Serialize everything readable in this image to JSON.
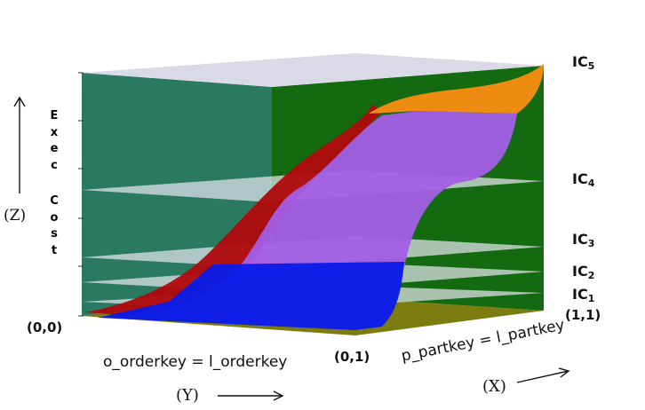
{
  "chart_data": {
    "type": "3d-surface",
    "title": "",
    "z_axis": {
      "title_letters": [
        "E",
        "x",
        "e",
        "c",
        "",
        "C",
        "o",
        "s",
        "t"
      ],
      "marker": "(Z)",
      "iso_cost_levels": [
        {
          "name": "IC",
          "sub": "1"
        },
        {
          "name": "IC",
          "sub": "2"
        },
        {
          "name": "IC",
          "sub": "3"
        },
        {
          "name": "IC",
          "sub": "4"
        },
        {
          "name": "IC",
          "sub": "5"
        }
      ]
    },
    "y_axis": {
      "label": "o_orderkey = l_orderkey",
      "marker": "(Y)",
      "origin": "(0,0)",
      "end": "(0,1)"
    },
    "x_axis": {
      "label": "p_partkey = l_partkey",
      "marker": "(X)",
      "end": "(1,1)"
    },
    "legend_colors": {
      "wall_left": "#1f7a62",
      "wall_right": "#1a6e12",
      "floor": "#8d8c1f",
      "iso_plane": "#e4e4ef",
      "surface_blue": "#0a1be6",
      "surface_purple": "#a25ae6",
      "surface_orange": "#ee8c12",
      "surface_red": "#b0090d"
    }
  }
}
